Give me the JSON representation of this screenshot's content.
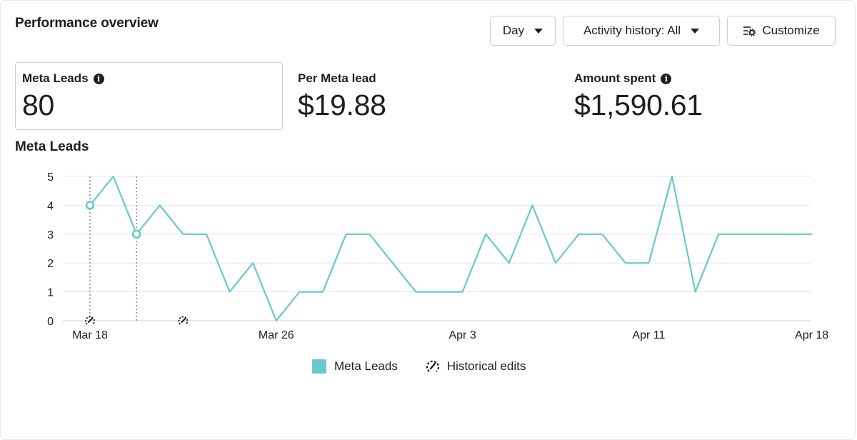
{
  "header": {
    "title": "Performance overview"
  },
  "controls": {
    "day_label": "Day",
    "activity_label": "Activity history: All",
    "customize_label": "Customize"
  },
  "metrics": [
    {
      "label": "Meta Leads",
      "value": "80",
      "info": "i"
    },
    {
      "label": "Per Meta lead",
      "value": "$19.88"
    },
    {
      "label": "Amount spent",
      "value": "$1,590.61",
      "info": "i"
    }
  ],
  "colors": {
    "series": "#67c9cc",
    "grid": "#e4e6eb",
    "text": "#1c1e21"
  },
  "chart_data": {
    "type": "line",
    "title": "Meta Leads",
    "x_start": "Mar 18",
    "x": [
      "Mar 18",
      "Mar 19",
      "Mar 20",
      "Mar 21",
      "Mar 22",
      "Mar 23",
      "Mar 24",
      "Mar 25",
      "Mar 26",
      "Mar 27",
      "Mar 28",
      "Mar 29",
      "Mar 30",
      "Mar 31",
      "Apr 1",
      "Apr 2",
      "Apr 3",
      "Apr 4",
      "Apr 5",
      "Apr 6",
      "Apr 7",
      "Apr 8",
      "Apr 9",
      "Apr 10",
      "Apr 11",
      "Apr 12",
      "Apr 13",
      "Apr 14",
      "Apr 15",
      "Apr 16",
      "Apr 17",
      "Apr 18"
    ],
    "series": [
      {
        "name": "Meta Leads",
        "values": [
          4,
          5,
          3,
          4,
          3,
          3,
          1,
          2,
          0,
          1,
          1,
          3,
          3,
          2,
          1,
          1,
          1,
          3,
          2,
          4,
          2,
          3,
          3,
          2,
          2,
          5,
          1,
          3,
          3,
          3,
          3,
          3
        ]
      }
    ],
    "ylim": [
      0,
      5
    ],
    "y_ticks": [
      0,
      1,
      2,
      3,
      4,
      5
    ],
    "x_tick_labels": [
      "Mar 18",
      "Mar 26",
      "Apr 3",
      "Apr 11",
      "Apr 18"
    ],
    "highlighted_points": [
      "Mar 18",
      "Mar 20"
    ],
    "historical_edits": [
      "Mar 18",
      "Mar 22"
    ],
    "grid": true,
    "legend": {
      "position": "bottom",
      "entries": [
        "Meta Leads",
        "Historical edits"
      ]
    }
  }
}
